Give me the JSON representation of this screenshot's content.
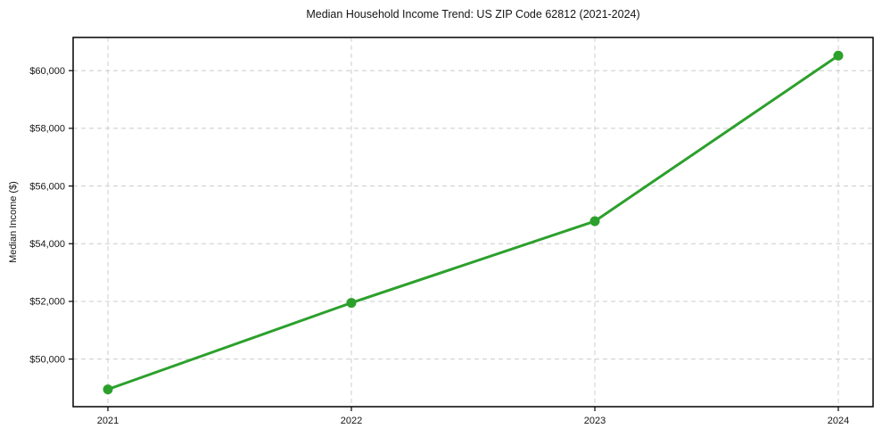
{
  "chart_data": {
    "type": "line",
    "title": "Median Household Income Trend: US ZIP Code 62812 (2021-2024)",
    "xlabel": "",
    "ylabel": "Median Income ($)",
    "categories": [
      "2021",
      "2022",
      "2023",
      "2024"
    ],
    "series": [
      {
        "name": "Median Income",
        "values": [
          48950,
          51950,
          54780,
          60520
        ]
      }
    ],
    "ylim": [
      48350,
      61150
    ],
    "y_ticks": [
      50000,
      52000,
      54000,
      56000,
      58000,
      60000
    ],
    "y_tick_labels": [
      "$50,000",
      "$52,000",
      "$54,000",
      "$56,000",
      "$58,000",
      "$60,000"
    ],
    "x_tick_labels": [
      "2021",
      "2022",
      "2023",
      "2024"
    ],
    "grid": "on",
    "legend": "none",
    "colors": {
      "line": "#2ca02c",
      "marker": "#2ca02c",
      "grid": "#cccccc",
      "frame": "#000000",
      "text": "#151515",
      "background": "#ffffff"
    }
  }
}
